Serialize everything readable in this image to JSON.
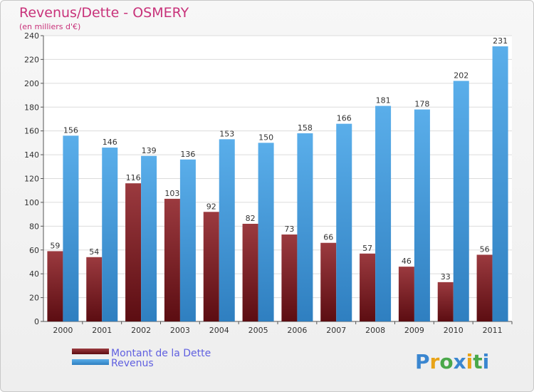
{
  "chart_data": {
    "type": "bar",
    "title": "Revenus/Dette - OSMERY",
    "subtitle": "(en milliers d'€)",
    "categories": [
      "2000",
      "2001",
      "2002",
      "2003",
      "2004",
      "2005",
      "2006",
      "2007",
      "2008",
      "2009",
      "2010",
      "2011"
    ],
    "series": [
      {
        "name": "Montant de la Dette",
        "color": "#7a1f24",
        "values": [
          59,
          54,
          116,
          103,
          92,
          82,
          73,
          66,
          57,
          46,
          33,
          56
        ]
      },
      {
        "name": "Revenus",
        "color": "#4aa3e6",
        "values": [
          156,
          146,
          139,
          136,
          153,
          150,
          158,
          166,
          181,
          178,
          202,
          231
        ]
      }
    ],
    "ylim": [
      0,
      240
    ],
    "yticks": [
      0,
      20,
      40,
      60,
      80,
      100,
      120,
      140,
      160,
      180,
      200,
      220,
      240
    ],
    "grid": true,
    "legend_position": "bottom-left"
  },
  "brand": {
    "logo_text": "Proxiti"
  }
}
